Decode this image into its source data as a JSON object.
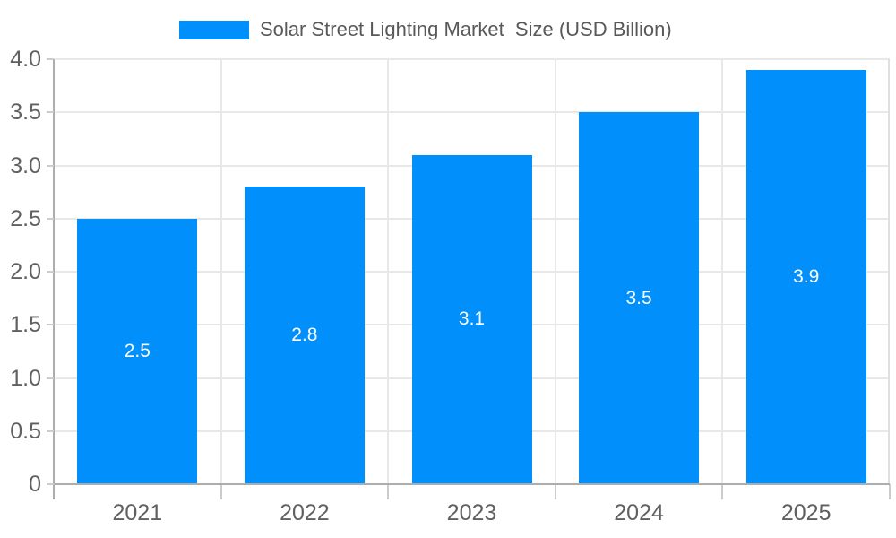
{
  "legend": {
    "label": "Solar Street Lighting Market  Size (USD Billion)",
    "swatch_color": "#008FFB"
  },
  "chart_data": {
    "type": "bar",
    "title": "Solar Street Lighting Market  Size (USD Billion)",
    "categories": [
      "2021",
      "2022",
      "2023",
      "2024",
      "2025"
    ],
    "series": [
      {
        "name": "Solar Street Lighting Market  Size (USD Billion)",
        "values": [
          2.5,
          2.8,
          3.1,
          3.5,
          3.9
        ]
      }
    ],
    "bar_value_labels": [
      "2.5",
      "2.8",
      "3.1",
      "3.5",
      "3.9"
    ],
    "xlabel": "",
    "ylabel": "",
    "ylim": [
      0,
      4.0
    ],
    "y_tick_step": 0.5,
    "y_tick_labels": [
      "0",
      "0.5",
      "1.0",
      "1.5",
      "2.0",
      "2.5",
      "3.0",
      "3.5",
      "4.0"
    ],
    "grid": true,
    "legend_position": "top",
    "colors": {
      "bar": "#008FFB",
      "value_label_text": "#ffffff",
      "grid_line": "#e8e8e8",
      "axis_line": "#adadad",
      "tick_line": "#cccccc",
      "plot_border_right": "#e0e0e0",
      "axis_text": "#606060",
      "legend_text": "#595959",
      "background": "#ffffff"
    }
  }
}
